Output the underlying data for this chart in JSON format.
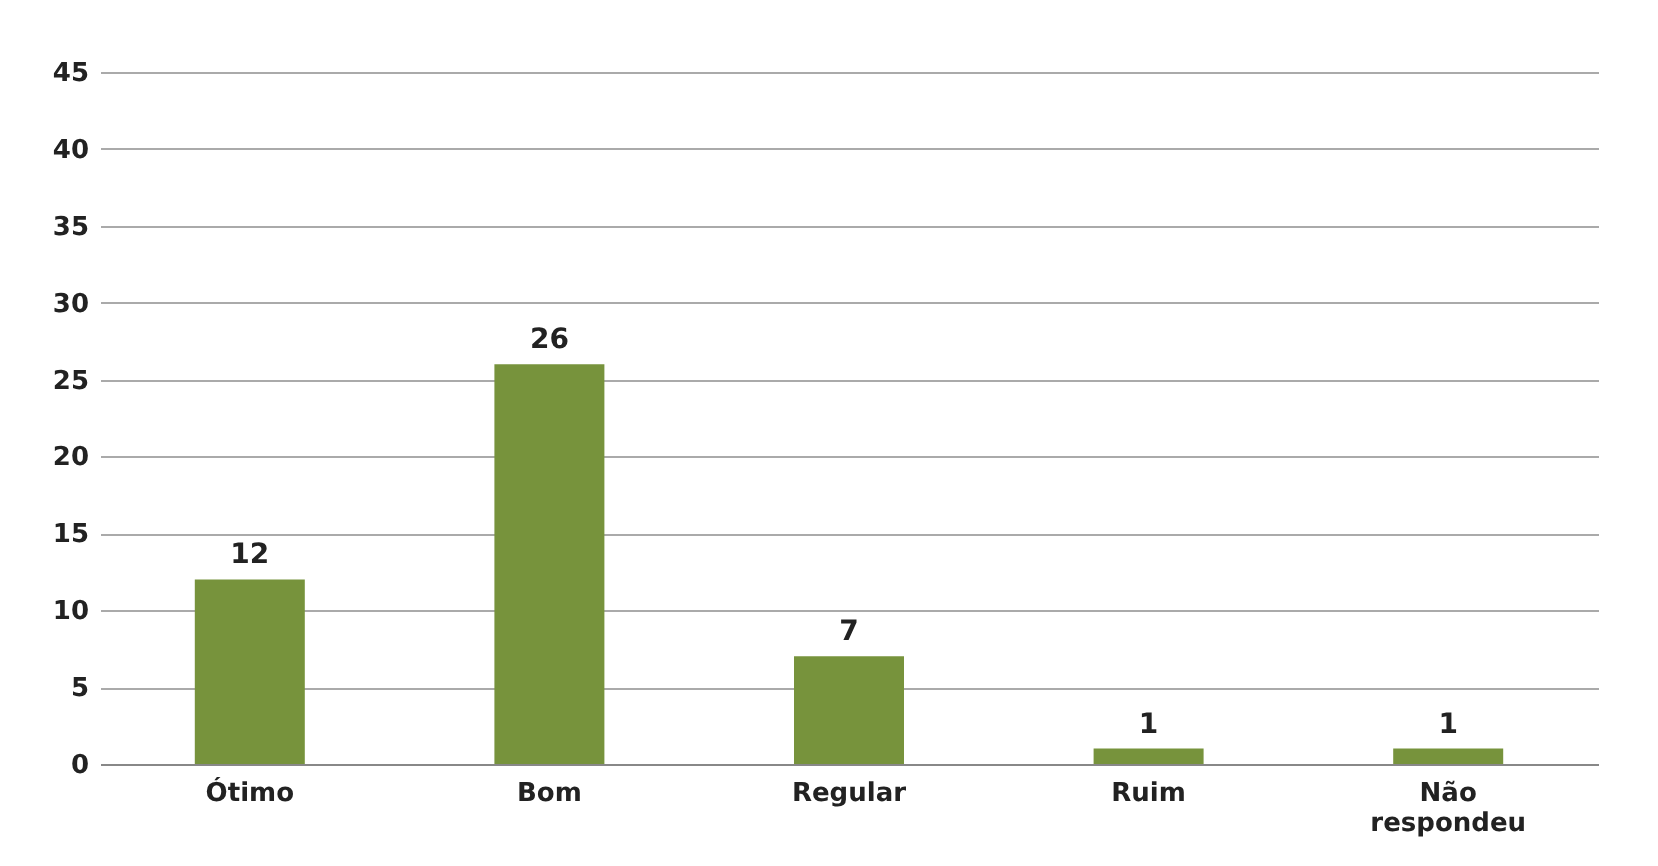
{
  "chart_data": {
    "type": "bar",
    "categories": [
      "Ótimo",
      "Bom",
      "Regular",
      "Ruim",
      "Não respondeu"
    ],
    "values": [
      12,
      26,
      7,
      1,
      1
    ],
    "color": "#77933c",
    "ylim": [
      0,
      45
    ],
    "yticks": [
      0,
      5,
      10,
      15,
      20,
      25,
      30,
      35,
      40,
      45
    ],
    "grid": "y",
    "data_labels": true
  }
}
